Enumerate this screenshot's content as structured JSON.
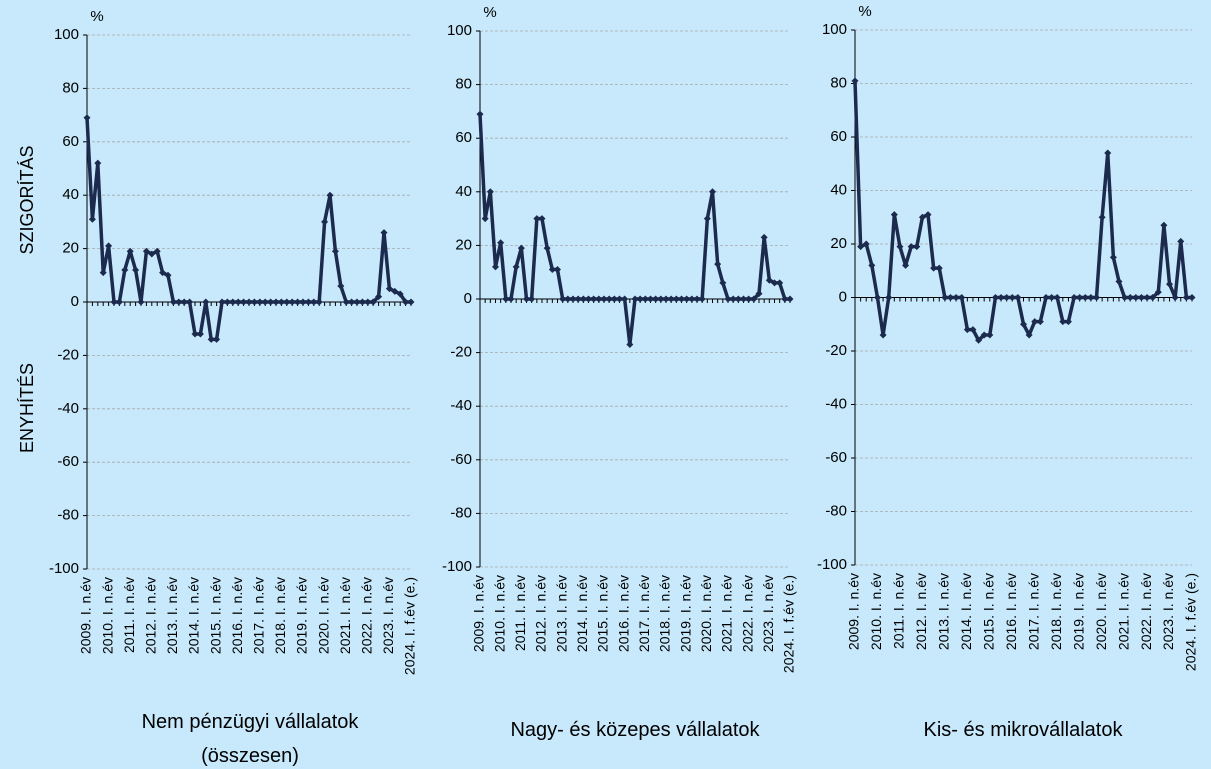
{
  "side_labels": [
    "SZIGORÍTÁS",
    "ENYHÍTÉS"
  ],
  "chart_data": [
    {
      "type": "line",
      "title": "Nem pénzügyi vállalatok (összesen)",
      "ylabel": "%",
      "color": "#1c2a4e",
      "categories": [
        "2009. I. n.év",
        null,
        null,
        null,
        "2010. I. n.év",
        null,
        null,
        null,
        "2011. I. n.év",
        null,
        null,
        null,
        "2012. I. n.év",
        null,
        null,
        null,
        "2013. I. n.év",
        null,
        null,
        null,
        "2014. I. n.év",
        null,
        null,
        null,
        "2015. I. n.év",
        null,
        null,
        null,
        "2016. I. n.év",
        null,
        null,
        null,
        "2017. I. n.év",
        null,
        null,
        null,
        "2018. I. n.év",
        null,
        null,
        null,
        "2019. I. n.év",
        null,
        null,
        null,
        "2020. I. n.év",
        null,
        null,
        null,
        "2021. I. n.év",
        null,
        null,
        null,
        "2022. I. n.év",
        null,
        null,
        null,
        "2023. I. n.év",
        null,
        null,
        null,
        "2024. I. f.év (e.)"
      ],
      "values": [
        69,
        31,
        52,
        11,
        21,
        0,
        0,
        12,
        19,
        12,
        0,
        19,
        18,
        19,
        11,
        10,
        0,
        0,
        0,
        0,
        -12,
        -12,
        0,
        -14,
        -14,
        0,
        0,
        0,
        0,
        0,
        0,
        0,
        0,
        0,
        0,
        0,
        0,
        0,
        0,
        0,
        0,
        0,
        0,
        0,
        30,
        40,
        19,
        6,
        0,
        0,
        0,
        0,
        0,
        0,
        2,
        26,
        5,
        4,
        3,
        0,
        0
      ],
      "ylim": [
        -100,
        100
      ],
      "yticks": [
        -100,
        -80,
        -60,
        -40,
        -20,
        0,
        20,
        40,
        60,
        80,
        100
      ],
      "grid": true
    },
    {
      "type": "line",
      "title": "Nagy- és közepes vállalatok",
      "ylabel": "%",
      "color": "#1c2a4e",
      "categories": [
        "2009. I. n.év",
        null,
        null,
        null,
        "2010. I. n.év",
        null,
        null,
        null,
        "2011. I. n.év",
        null,
        null,
        null,
        "2012. I. n.év",
        null,
        null,
        null,
        "2013. I. n.év",
        null,
        null,
        null,
        "2014. I. n.év",
        null,
        null,
        null,
        "2015. I. n.év",
        null,
        null,
        null,
        "2016. I. n.év",
        null,
        null,
        null,
        "2017. I. n.év",
        null,
        null,
        null,
        "2018. I. n.év",
        null,
        null,
        null,
        "2019. I. n.év",
        null,
        null,
        null,
        "2020. I. n.év",
        null,
        null,
        null,
        "2021. I. n.év",
        null,
        null,
        null,
        "2022. I. n.év",
        null,
        null,
        null,
        "2023. I. n.év",
        null,
        null,
        null,
        "2024. I. f.év (e.)"
      ],
      "values": [
        69,
        30,
        40,
        12,
        21,
        0,
        0,
        12,
        19,
        0,
        0,
        30,
        30,
        19,
        11,
        11,
        0,
        0,
        0,
        0,
        0,
        0,
        0,
        0,
        0,
        0,
        0,
        0,
        0,
        -17,
        0,
        0,
        0,
        0,
        0,
        0,
        0,
        0,
        0,
        0,
        0,
        0,
        0,
        0,
        30,
        40,
        13,
        6,
        0,
        0,
        0,
        0,
        0,
        0,
        2,
        23,
        7,
        6,
        6,
        0,
        0
      ],
      "ylim": [
        -100,
        100
      ],
      "yticks": [
        -100,
        -80,
        -60,
        -40,
        -20,
        0,
        20,
        40,
        60,
        80,
        100
      ],
      "grid": true
    },
    {
      "type": "line",
      "title": "Kis- és mikrovállalatok",
      "ylabel": "%",
      "color": "#1c2a4e",
      "categories": [
        "2009. I. n.év",
        null,
        null,
        null,
        "2010. I. n.év",
        null,
        null,
        null,
        "2011. I. n.év",
        null,
        null,
        null,
        "2012. I. n.év",
        null,
        null,
        null,
        "2013. I. n.év",
        null,
        null,
        null,
        "2014. I. n.év",
        null,
        null,
        null,
        "2015. I. n.év",
        null,
        null,
        null,
        "2016. I. n.év",
        null,
        null,
        null,
        "2017. I. n.év",
        null,
        null,
        null,
        "2018. I. n.év",
        null,
        null,
        null,
        "2019. I. n.év",
        null,
        null,
        null,
        "2020. I. n.év",
        null,
        null,
        null,
        "2021. I. n.év",
        null,
        null,
        null,
        "2022. I. n.év",
        null,
        null,
        null,
        "2023. I. n.év",
        null,
        null,
        null,
        "2024. I. f.év (e.)"
      ],
      "values": [
        81,
        19,
        20,
        12,
        0,
        -14,
        0,
        31,
        19,
        12,
        19,
        19,
        30,
        31,
        11,
        11,
        0,
        0,
        0,
        0,
        -12,
        -12,
        -16,
        -14,
        -14,
        0,
        0,
        0,
        0,
        0,
        -10,
        -14,
        -9,
        -9,
        0,
        0,
        0,
        -9,
        -9,
        0,
        0,
        0,
        0,
        0,
        30,
        54,
        15,
        6,
        0,
        0,
        0,
        0,
        0,
        0,
        2,
        27,
        5,
        0,
        21,
        0,
        0
      ],
      "ylim": [
        -100,
        100
      ],
      "yticks": [
        -100,
        -80,
        -60,
        -40,
        -20,
        0,
        20,
        40,
        60,
        80,
        100
      ],
      "grid": true
    }
  ]
}
